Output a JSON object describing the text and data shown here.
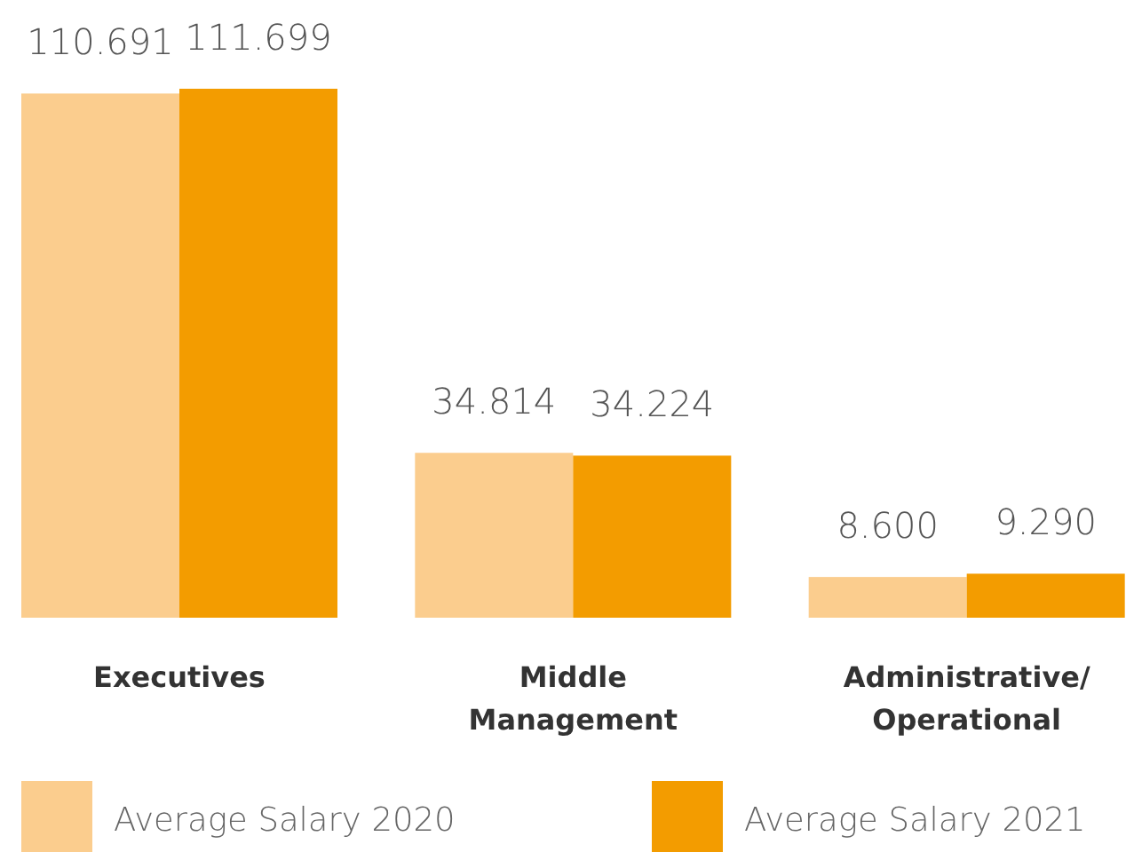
{
  "chart_data": {
    "type": "bar",
    "categories": [
      "Executives",
      "Middle Management",
      "Administrative/ Operational"
    ],
    "series": [
      {
        "name": "Average Salary 2020",
        "color": "#fbcd8e",
        "values": [
          110.691,
          34.814,
          8.6
        ],
        "value_labels": [
          "110.691",
          "34.814",
          "8.600"
        ]
      },
      {
        "name": "Average Salary 2021",
        "color": "#f39c00",
        "values": [
          111.699,
          34.224,
          9.29
        ],
        "value_labels": [
          "111.699",
          "34.224",
          "9.290"
        ]
      }
    ],
    "legend": "bottom"
  }
}
